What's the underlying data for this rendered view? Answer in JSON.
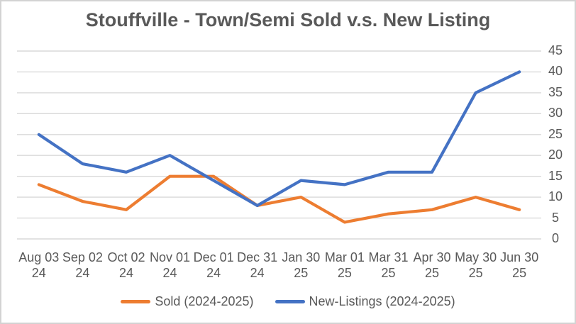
{
  "chart_data": {
    "type": "line",
    "title": "Stouffville - Town/Semi Sold v.s. New Listing",
    "x_tick_labels": [
      {
        "line1": "Aug 03",
        "line2": "24"
      },
      {
        "line1": "Sep 02",
        "line2": "24"
      },
      {
        "line1": "Oct 02",
        "line2": "24"
      },
      {
        "line1": "Nov 01",
        "line2": "24"
      },
      {
        "line1": "Dec 01",
        "line2": "24"
      },
      {
        "line1": "Dec 31",
        "line2": "24"
      },
      {
        "line1": "Jan 30",
        "line2": "25"
      },
      {
        "line1": "Mar 01",
        "line2": "25"
      },
      {
        "line1": "Mar 31",
        "line2": "25"
      },
      {
        "line1": "Apr 30",
        "line2": "25"
      },
      {
        "line1": "May 30",
        "line2": "25"
      },
      {
        "line1": "Jun 30",
        "line2": "25"
      }
    ],
    "series": [
      {
        "name": "Sold (2024-2025)",
        "color": "#ED7D31",
        "values": [
          13,
          9,
          7,
          15,
          15,
          8,
          10,
          4,
          6,
          7,
          10,
          7
        ]
      },
      {
        "name": "New-Listings (2024-2025)",
        "color": "#4472C4",
        "values": [
          25,
          18,
          16,
          20,
          14,
          8,
          14,
          13,
          16,
          16,
          35,
          40
        ]
      }
    ],
    "ylim": [
      0,
      45
    ],
    "ytick_step": 5,
    "ytick_labels": [
      "0",
      "5",
      "10",
      "15",
      "20",
      "25",
      "30",
      "35",
      "40",
      "45"
    ],
    "y_axis_side": "right",
    "grid": "horizontal",
    "legend_position": "bottom"
  },
  "styles": {
    "grid_color": "#D9D9D9",
    "label_color": "#595959",
    "title_color": "#595959",
    "frame_border_color": "#D3D3D3",
    "line_width": 4.2
  }
}
